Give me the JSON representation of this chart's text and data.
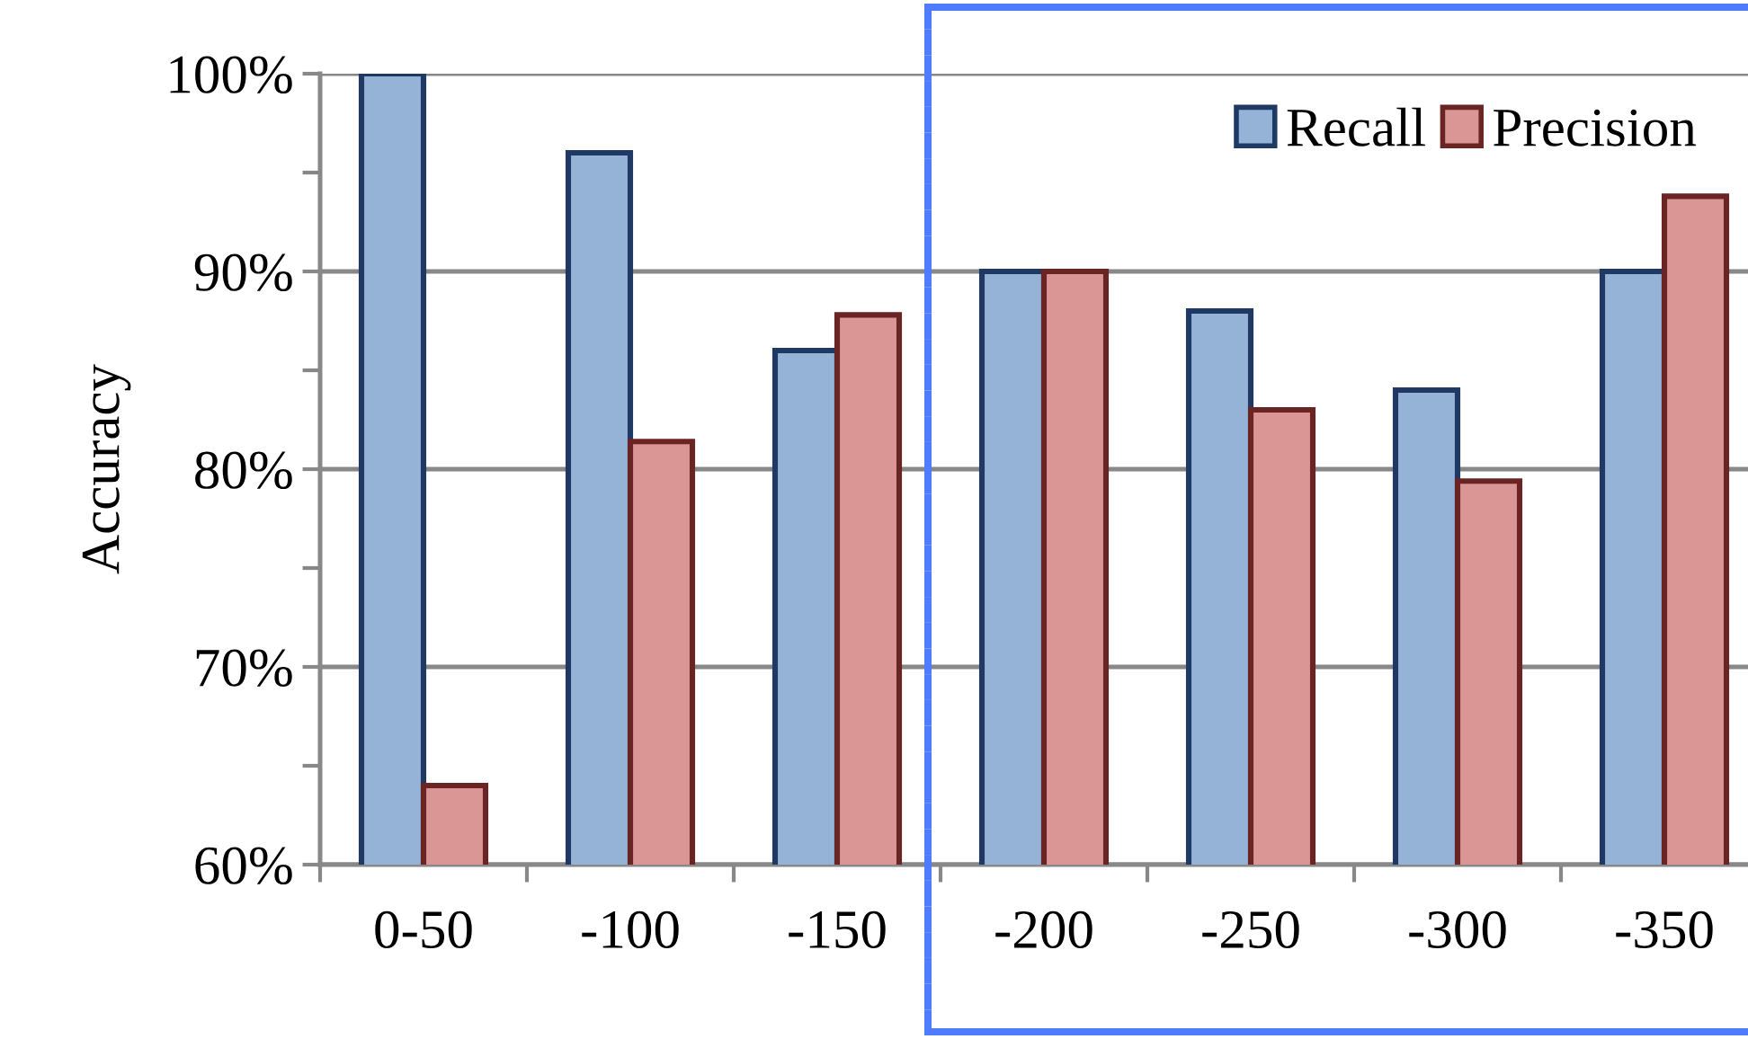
{
  "chart_data": {
    "type": "bar",
    "ylabel": "Accuracy",
    "categories": [
      "0-50",
      "-100",
      "-150",
      "-200",
      "-250",
      "-300",
      "-350"
    ],
    "series": [
      {
        "name": "Recall",
        "color": "#95b3d7",
        "values": [
          100,
          96,
          86,
          90,
          88,
          84,
          90
        ]
      },
      {
        "name": "Precision",
        "color": "#d99694",
        "values": [
          64,
          81.4,
          87.8,
          90,
          83,
          79.4,
          93.8
        ]
      }
    ],
    "ylim": [
      60,
      100
    ],
    "yticks": [
      {
        "value": 60,
        "label": "60%"
      },
      {
        "value": 65,
        "label": null
      },
      {
        "value": 70,
        "label": "70%"
      },
      {
        "value": 75,
        "label": null
      },
      {
        "value": 80,
        "label": "80%"
      },
      {
        "value": 85,
        "label": null
      },
      {
        "value": 90,
        "label": "90%"
      },
      {
        "value": 95,
        "label": null
      },
      {
        "value": 100,
        "label": "100%"
      }
    ],
    "grid": "y",
    "legend": "top right"
  }
}
